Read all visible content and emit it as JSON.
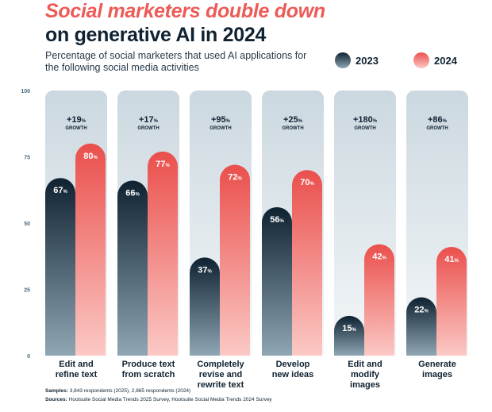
{
  "header": {
    "title_line1": "Social marketers double down",
    "title_line2": "on generative AI in 2024",
    "subtitle": "Percentage of social marketers that used AI applications for the following social media activities"
  },
  "legend": {
    "items": [
      {
        "label": "2023",
        "color_top": "#0f2231",
        "color_bottom": "#8fa6b5"
      },
      {
        "label": "2024",
        "color_top": "#ea4f4c",
        "color_bottom": "#fbc9c5"
      }
    ]
  },
  "footer": {
    "samples_label": "Samples:",
    "samples_text": "3,843 respondents (2025), 2,865 respondents (2024)",
    "sources_label": "Sources:",
    "sources_text": "Hootsuite Social Media Trends 2025 Survey, Hootsuite Social Media Trends 2024 Survey"
  },
  "colors": {
    "title_accent": "#ec5b57",
    "dark": "#0f2231",
    "column_bg_top": "#cbd8df",
    "column_bg_bottom": "#f4f7f9"
  },
  "chart_data": {
    "type": "bar",
    "categories": [
      [
        "Edit and",
        "refine text"
      ],
      [
        "Produce text",
        "from scratch"
      ],
      [
        "Completely",
        "revise and",
        "rewrite text"
      ],
      [
        "Develop",
        "new ideas"
      ],
      [
        "Edit and",
        "modify",
        "images"
      ],
      [
        "Generate",
        "images"
      ]
    ],
    "series": [
      {
        "name": "2023",
        "values": [
          67,
          66,
          37,
          56,
          15,
          22
        ]
      },
      {
        "name": "2024",
        "values": [
          80,
          77,
          72,
          70,
          42,
          41
        ]
      }
    ],
    "growth": [
      "+19",
      "+17",
      "+95",
      "+25",
      "+180",
      "+86"
    ],
    "growth_unit": "%",
    "growth_label": "GROWTH",
    "value_unit": "%",
    "yticks": [
      0,
      25,
      50,
      75,
      100
    ],
    "ylim": [
      0,
      100
    ]
  }
}
